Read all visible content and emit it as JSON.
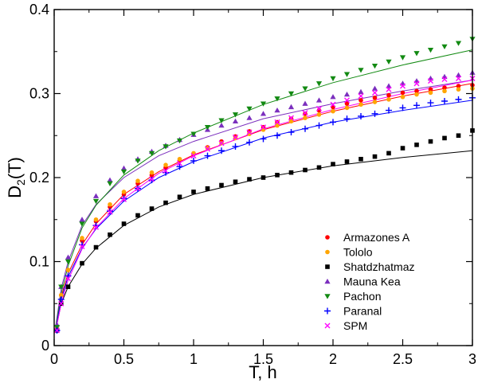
{
  "chart_data": {
    "type": "scatter",
    "title": "",
    "xlabel": "T, h",
    "ylabel_main": "D",
    "ylabel_sub": "2",
    "ylabel_tail": "(T)",
    "xlim": [
      0,
      3
    ],
    "ylim": [
      0,
      0.4
    ],
    "grid": false,
    "legend_position": "bottom-right",
    "x_ticks": [
      {
        "value": 0,
        "label": "0"
      },
      {
        "value": 0.5,
        "label": "0.5"
      },
      {
        "value": 1,
        "label": "1"
      },
      {
        "value": 1.5,
        "label": "1.5"
      },
      {
        "value": 2,
        "label": "2"
      },
      {
        "value": 2.5,
        "label": "2.5"
      },
      {
        "value": 3,
        "label": "3"
      }
    ],
    "y_ticks": [
      {
        "value": 0,
        "label": "0"
      },
      {
        "value": 0.1,
        "label": "0.1"
      },
      {
        "value": 0.2,
        "label": "0.2"
      },
      {
        "value": 0.3,
        "label": "0.3"
      },
      {
        "value": 0.4,
        "label": "0.4"
      }
    ],
    "series": [
      {
        "name": "Armazones A",
        "color": "#ff0000",
        "marker": "circle",
        "fit_color": "#ff0000",
        "x": [
          0.02,
          0.05,
          0.1,
          0.2,
          0.3,
          0.4,
          0.5,
          0.6,
          0.7,
          0.8,
          0.9,
          1.0,
          1.1,
          1.2,
          1.3,
          1.4,
          1.5,
          1.6,
          1.7,
          1.8,
          1.9,
          2.0,
          2.1,
          2.2,
          2.3,
          2.4,
          2.5,
          2.6,
          2.7,
          2.8,
          2.9,
          3.0
        ],
        "y": [
          0.02,
          0.06,
          0.09,
          0.125,
          0.148,
          0.165,
          0.18,
          0.193,
          0.203,
          0.212,
          0.22,
          0.228,
          0.236,
          0.243,
          0.249,
          0.255,
          0.26,
          0.266,
          0.27,
          0.276,
          0.28,
          0.284,
          0.288,
          0.292,
          0.295,
          0.298,
          0.301,
          0.303,
          0.305,
          0.307,
          0.309,
          0.31
        ],
        "fit_x": [
          0.01,
          0.05,
          0.1,
          0.2,
          0.3,
          0.5,
          0.75,
          1.0,
          1.5,
          2.0,
          2.5,
          3.0
        ],
        "fit_y": [
          0.02,
          0.058,
          0.086,
          0.12,
          0.145,
          0.18,
          0.207,
          0.227,
          0.257,
          0.279,
          0.297,
          0.312
        ]
      },
      {
        "name": "Tololo",
        "color": "#ffa500",
        "marker": "circle",
        "fit_color": "#ffa500",
        "x": [
          0.02,
          0.05,
          0.1,
          0.2,
          0.3,
          0.4,
          0.5,
          0.6,
          0.7,
          0.8,
          0.9,
          1.0,
          1.1,
          1.2,
          1.3,
          1.4,
          1.5,
          1.6,
          1.7,
          1.8,
          1.9,
          2.0,
          2.1,
          2.2,
          2.3,
          2.4,
          2.5,
          2.6,
          2.7,
          2.8,
          2.9,
          3.0
        ],
        "y": [
          0.02,
          0.06,
          0.09,
          0.128,
          0.15,
          0.168,
          0.183,
          0.196,
          0.206,
          0.215,
          0.222,
          0.229,
          0.235,
          0.241,
          0.247,
          0.252,
          0.257,
          0.262,
          0.267,
          0.271,
          0.275,
          0.279,
          0.283,
          0.287,
          0.29,
          0.293,
          0.296,
          0.299,
          0.301,
          0.303,
          0.305,
          0.306
        ]
      },
      {
        "name": "Shatdzhatmaz",
        "color": "#000000",
        "marker": "square",
        "fit_color": "#000000",
        "x": [
          0.02,
          0.05,
          0.1,
          0.2,
          0.3,
          0.4,
          0.5,
          0.6,
          0.7,
          0.8,
          0.9,
          1.0,
          1.1,
          1.2,
          1.3,
          1.4,
          1.5,
          1.6,
          1.7,
          1.8,
          1.9,
          2.0,
          2.1,
          2.2,
          2.3,
          2.4,
          2.5,
          2.6,
          2.7,
          2.8,
          2.9,
          3.0
        ],
        "y": [
          0.018,
          0.05,
          0.07,
          0.098,
          0.117,
          0.132,
          0.145,
          0.155,
          0.163,
          0.17,
          0.177,
          0.183,
          0.187,
          0.191,
          0.195,
          0.198,
          0.2,
          0.203,
          0.206,
          0.209,
          0.212,
          0.216,
          0.219,
          0.222,
          0.225,
          0.229,
          0.235,
          0.239,
          0.243,
          0.247,
          0.25,
          0.256
        ],
        "fit_x": [
          0.01,
          0.05,
          0.1,
          0.2,
          0.3,
          0.5,
          0.75,
          1.0,
          1.5,
          2.0,
          2.5,
          3.0
        ],
        "fit_y": [
          0.018,
          0.05,
          0.07,
          0.097,
          0.116,
          0.143,
          0.165,
          0.18,
          0.2,
          0.214,
          0.224,
          0.232
        ]
      },
      {
        "name": "Mauna Kea",
        "color": "#7b2fbe",
        "marker": "triangle-up",
        "fit_color": "#7b2fbe",
        "x": [
          0.02,
          0.05,
          0.1,
          0.2,
          0.3,
          0.4,
          0.5,
          0.6,
          0.7,
          0.8,
          0.9,
          1.0,
          1.1,
          1.2,
          1.3,
          1.4,
          1.5,
          1.6,
          1.7,
          1.8,
          1.9,
          2.0,
          2.1,
          2.2,
          2.3,
          2.4,
          2.5,
          2.6,
          2.7,
          2.8,
          2.9,
          3.0
        ],
        "y": [
          0.025,
          0.07,
          0.105,
          0.15,
          0.178,
          0.197,
          0.211,
          0.222,
          0.231,
          0.238,
          0.245,
          0.251,
          0.257,
          0.262,
          0.267,
          0.271,
          0.276,
          0.28,
          0.284,
          0.288,
          0.292,
          0.296,
          0.299,
          0.302,
          0.306,
          0.309,
          0.312,
          0.315,
          0.318,
          0.32,
          0.322,
          0.325
        ],
        "fit_x": [
          0.01,
          0.05,
          0.1,
          0.2,
          0.3,
          0.5,
          0.75,
          1.0,
          1.5,
          2.0,
          2.5,
          3.0
        ],
        "fit_y": [
          0.022,
          0.068,
          0.1,
          0.143,
          0.168,
          0.2,
          0.226,
          0.243,
          0.27,
          0.288,
          0.303,
          0.316
        ]
      },
      {
        "name": "Pachon",
        "color": "#128a12",
        "marker": "triangle-down",
        "fit_color": "#128a12",
        "x": [
          0.02,
          0.05,
          0.1,
          0.2,
          0.3,
          0.4,
          0.5,
          0.6,
          0.7,
          0.8,
          0.9,
          1.0,
          1.1,
          1.2,
          1.3,
          1.4,
          1.5,
          1.6,
          1.7,
          1.8,
          1.9,
          2.0,
          2.1,
          2.2,
          2.3,
          2.4,
          2.5,
          2.6,
          2.7,
          2.8,
          2.9,
          3.0
        ],
        "y": [
          0.022,
          0.07,
          0.1,
          0.145,
          0.172,
          0.193,
          0.207,
          0.22,
          0.229,
          0.237,
          0.244,
          0.252,
          0.26,
          0.268,
          0.275,
          0.282,
          0.288,
          0.294,
          0.3,
          0.306,
          0.312,
          0.318,
          0.323,
          0.328,
          0.333,
          0.338,
          0.343,
          0.348,
          0.352,
          0.356,
          0.36,
          0.365
        ],
        "fit_x": [
          0.01,
          0.05,
          0.1,
          0.2,
          0.3,
          0.5,
          0.75,
          1.0,
          1.5,
          2.0,
          2.5,
          3.0
        ],
        "fit_y": [
          0.02,
          0.062,
          0.095,
          0.14,
          0.167,
          0.203,
          0.232,
          0.253,
          0.287,
          0.313,
          0.334,
          0.352
        ]
      },
      {
        "name": "Paranal",
        "color": "#0000ff",
        "marker": "plus",
        "fit_color": "#0000ff",
        "x": [
          0.02,
          0.05,
          0.1,
          0.2,
          0.3,
          0.4,
          0.5,
          0.6,
          0.7,
          0.8,
          0.9,
          1.0,
          1.1,
          1.2,
          1.3,
          1.4,
          1.5,
          1.6,
          1.7,
          1.8,
          1.9,
          2.0,
          2.1,
          2.2,
          2.3,
          2.4,
          2.5,
          2.6,
          2.7,
          2.8,
          2.9,
          3.0
        ],
        "y": [
          0.018,
          0.055,
          0.083,
          0.12,
          0.143,
          0.16,
          0.175,
          0.187,
          0.197,
          0.206,
          0.213,
          0.22,
          0.226,
          0.232,
          0.237,
          0.242,
          0.246,
          0.25,
          0.254,
          0.258,
          0.262,
          0.266,
          0.27,
          0.273,
          0.276,
          0.28,
          0.283,
          0.286,
          0.289,
          0.291,
          0.293,
          0.295
        ],
        "fit_x": [
          0.01,
          0.05,
          0.1,
          0.2,
          0.3,
          0.5,
          0.75,
          1.0,
          1.5,
          2.0,
          2.5,
          3.0
        ],
        "fit_y": [
          0.018,
          0.055,
          0.082,
          0.116,
          0.139,
          0.172,
          0.2,
          0.219,
          0.247,
          0.266,
          0.28,
          0.292
        ]
      },
      {
        "name": "SPM",
        "color": "#ff00ff",
        "marker": "cross",
        "fit_color": "#ff00ff",
        "x": [
          0.02,
          0.05,
          0.1,
          0.2,
          0.3,
          0.4,
          0.5,
          0.6,
          0.7,
          0.8,
          0.9,
          1.0,
          1.1,
          1.2,
          1.3,
          1.4,
          1.5,
          1.6,
          1.7,
          1.8,
          1.9,
          2.0,
          2.1,
          2.2,
          2.3,
          2.4,
          2.5,
          2.6,
          2.7,
          2.8,
          2.9,
          3.0
        ],
        "y": [
          0.018,
          0.05,
          0.08,
          0.118,
          0.141,
          0.159,
          0.174,
          0.187,
          0.198,
          0.208,
          0.217,
          0.226,
          0.234,
          0.241,
          0.248,
          0.254,
          0.26,
          0.266,
          0.271,
          0.277,
          0.282,
          0.287,
          0.292,
          0.297,
          0.301,
          0.305,
          0.309,
          0.312,
          0.315,
          0.317,
          0.318,
          0.318
        ],
        "fit_x": [
          0.01,
          0.05,
          0.1,
          0.2,
          0.3,
          0.5,
          0.75,
          1.0,
          1.5,
          2.0,
          2.5,
          3.0
        ],
        "fit_y": [
          0.017,
          0.05,
          0.078,
          0.115,
          0.14,
          0.175,
          0.205,
          0.226,
          0.258,
          0.281,
          0.3,
          0.316
        ]
      }
    ]
  }
}
